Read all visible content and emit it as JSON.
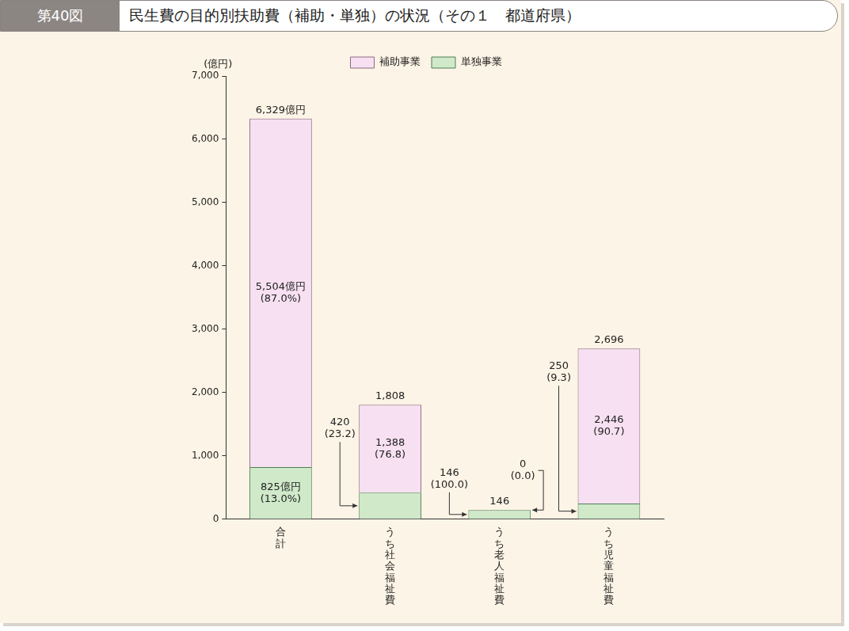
{
  "chart_data": {
    "type": "bar",
    "figure_label": "第40図",
    "title": "民生費の目的別扶助費（補助・単独）の状況（その１　都道府県）",
    "y_label": "(億円)",
    "categories": [
      "合計",
      "うち社会福祉費",
      "うち老人福祉費",
      "うち児童福祉費"
    ],
    "series": [
      {
        "name": "単独事業",
        "color": "#cfe9c9",
        "values": [
          825,
          420,
          146,
          250
        ],
        "value_labels": [
          "825億円\n(13.0%)",
          "420\n(23.2)",
          "146\n(100.0)",
          "250\n(9.3)"
        ]
      },
      {
        "name": "補助事業",
        "color": "#f6e0f1",
        "values": [
          5504,
          1388,
          0,
          2446
        ],
        "value_labels": [
          "5,504億円\n(87.0%)",
          "1,388\n(76.8)",
          "0\n(0.0)",
          "2,446\n(90.7)"
        ]
      }
    ],
    "totals": [
      6329,
      1808,
      146,
      2696
    ],
    "total_labels": [
      "6,329億円",
      "1,808",
      "146",
      "2,696"
    ],
    "stacked": true,
    "data_labels": true,
    "legend": "top",
    "grid": false,
    "ylim": [
      0,
      7000
    ],
    "yticks": [
      0,
      {
        "value": 1000,
        "label": "1,000"
      },
      {
        "value": 2000,
        "label": "2,000"
      },
      {
        "value": 3000,
        "label": "3,000"
      },
      {
        "value": 4000,
        "label": "4,000"
      },
      {
        "value": 5000,
        "label": "5,000"
      },
      {
        "value": 6000,
        "label": "6,000"
      },
      {
        "value": 7000,
        "label": "7,000"
      }
    ]
  }
}
